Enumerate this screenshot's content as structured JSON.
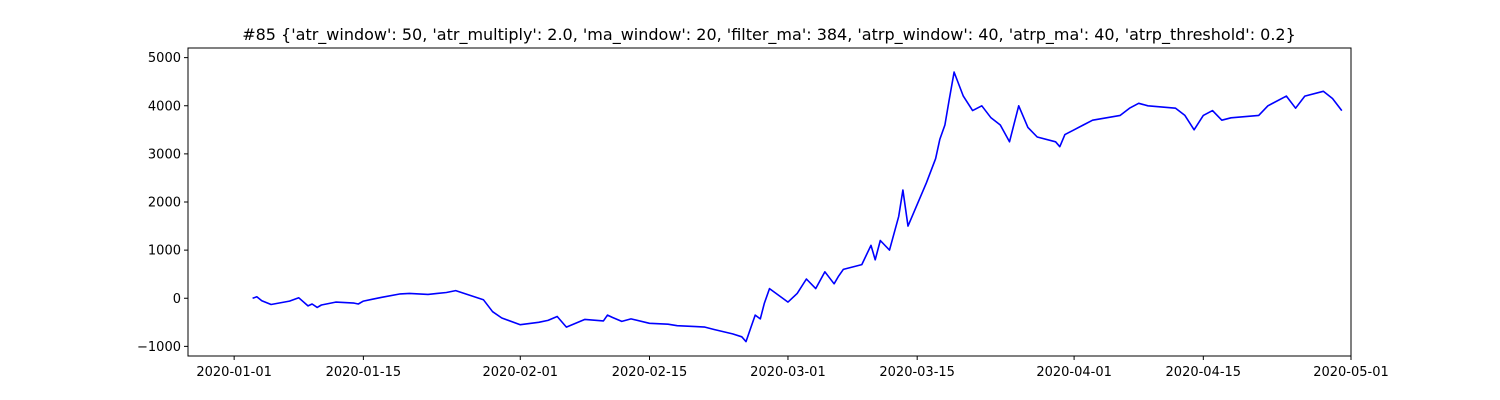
{
  "chart_data": {
    "type": "line",
    "title": "#85 {'atr_window': 50, 'atr_multiply': 2.0, 'ma_window': 20, 'filter_ma': 384, 'atrp_window': 40, 'atrp_ma': 40, 'atrp_threshold': 0.2}",
    "xlabel": "",
    "ylabel": "",
    "ylim": [
      -1200,
      5200
    ],
    "grid": false,
    "x_ticks": [
      "2020-01-01",
      "2020-01-15",
      "2020-02-01",
      "2020-02-15",
      "2020-03-01",
      "2020-03-15",
      "2020-04-01",
      "2020-04-15",
      "2020-05-01"
    ],
    "y_ticks": [
      -1000,
      0,
      1000,
      2000,
      3000,
      4000,
      5000
    ],
    "xlim": [
      "2019-12-27",
      "2020-05-01"
    ],
    "series": [
      {
        "color": "#0000ff",
        "x": [
          "2020-01-03",
          "2020-01-03",
          "2020-01-04",
          "2020-01-05",
          "2020-01-07",
          "2020-01-08",
          "2020-01-09",
          "2020-01-09",
          "2020-01-10",
          "2020-01-10",
          "2020-01-12",
          "2020-01-14",
          "2020-01-14",
          "2020-01-15",
          "2020-01-16",
          "2020-01-17",
          "2020-01-19",
          "2020-01-20",
          "2020-01-22",
          "2020-01-23",
          "2020-01-24",
          "2020-01-25",
          "2020-01-28",
          "2020-01-29",
          "2020-01-30",
          "2020-02-01",
          "2020-02-03",
          "2020-02-04",
          "2020-02-05",
          "2020-02-06",
          "2020-02-08",
          "2020-02-10",
          "2020-02-10",
          "2020-02-11",
          "2020-02-12",
          "2020-02-13",
          "2020-02-15",
          "2020-02-17",
          "2020-02-18",
          "2020-02-20",
          "2020-02-21",
          "2020-02-22",
          "2020-02-24",
          "2020-02-25",
          "2020-02-25",
          "2020-02-26",
          "2020-02-26",
          "2020-02-27",
          "2020-02-27",
          "2020-02-28",
          "2020-03-01",
          "2020-03-02",
          "2020-03-03",
          "2020-03-04",
          "2020-03-05",
          "2020-03-06",
          "2020-03-06",
          "2020-03-07",
          "2020-03-09",
          "2020-03-10",
          "2020-03-10",
          "2020-03-11",
          "2020-03-12",
          "2020-03-13",
          "2020-03-13",
          "2020-03-14",
          "2020-03-16",
          "2020-03-17",
          "2020-03-17",
          "2020-03-18",
          "2020-03-18",
          "2020-03-19",
          "2020-03-20",
          "2020-03-21",
          "2020-03-22",
          "2020-03-23",
          "2020-03-24",
          "2020-03-25",
          "2020-03-26",
          "2020-03-27",
          "2020-03-28",
          "2020-03-30",
          "2020-03-30",
          "2020-03-31",
          "2020-04-01",
          "2020-04-02",
          "2020-04-03",
          "2020-04-06",
          "2020-04-07",
          "2020-04-08",
          "2020-04-09",
          "2020-04-12",
          "2020-04-13",
          "2020-04-14",
          "2020-04-15",
          "2020-04-16",
          "2020-04-17",
          "2020-04-18",
          "2020-04-21",
          "2020-04-22",
          "2020-04-24",
          "2020-04-25",
          "2020-04-26",
          "2020-04-28",
          "2020-04-29",
          "2020-04-30"
        ],
        "values": [
          0,
          30,
          -50,
          -130,
          -60,
          10,
          -160,
          -120,
          -190,
          -140,
          -80,
          -100,
          -120,
          -60,
          -20,
          20,
          90,
          100,
          80,
          100,
          120,
          160,
          -30,
          -280,
          -410,
          -550,
          -500,
          -460,
          -380,
          -600,
          -440,
          -470,
          -350,
          -400,
          -480,
          -430,
          -520,
          -540,
          -570,
          -590,
          -600,
          -650,
          -740,
          -800,
          -900,
          -600,
          -350,
          -430,
          -100,
          200,
          -80,
          100,
          400,
          200,
          550,
          300,
          450,
          600,
          700,
          1100,
          800,
          1200,
          1000,
          1700,
          2250,
          1500,
          2400,
          2900,
          3300,
          3600,
          4100,
          4700,
          4200,
          3900,
          4000,
          3750,
          3600,
          3250,
          4000,
          3550,
          3350,
          3250,
          3150,
          3400,
          3500,
          3600,
          3700,
          3800,
          3950,
          4050,
          4000,
          3950,
          3800,
          3500,
          3800,
          3900,
          3700,
          3750,
          3800,
          4000,
          4200,
          3950,
          4200,
          4300,
          4150,
          3900
        ]
      }
    ]
  }
}
